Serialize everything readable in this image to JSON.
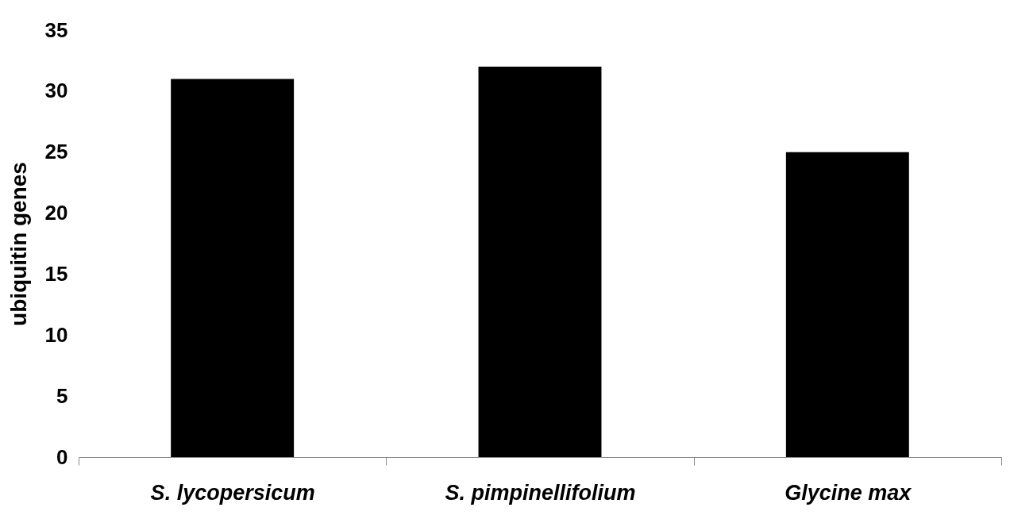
{
  "chart_data": {
    "type": "bar",
    "ylabel": "ubiquitin genes",
    "categories": [
      "S. lycopersicum",
      "S. pimpinellifolium",
      "Glycine max"
    ],
    "values": [
      31,
      32,
      25
    ],
    "color": "#000000",
    "ylim": [
      0,
      35
    ],
    "yticks": [
      0,
      5,
      10,
      15,
      20,
      25,
      30,
      35
    ],
    "grid": false
  }
}
